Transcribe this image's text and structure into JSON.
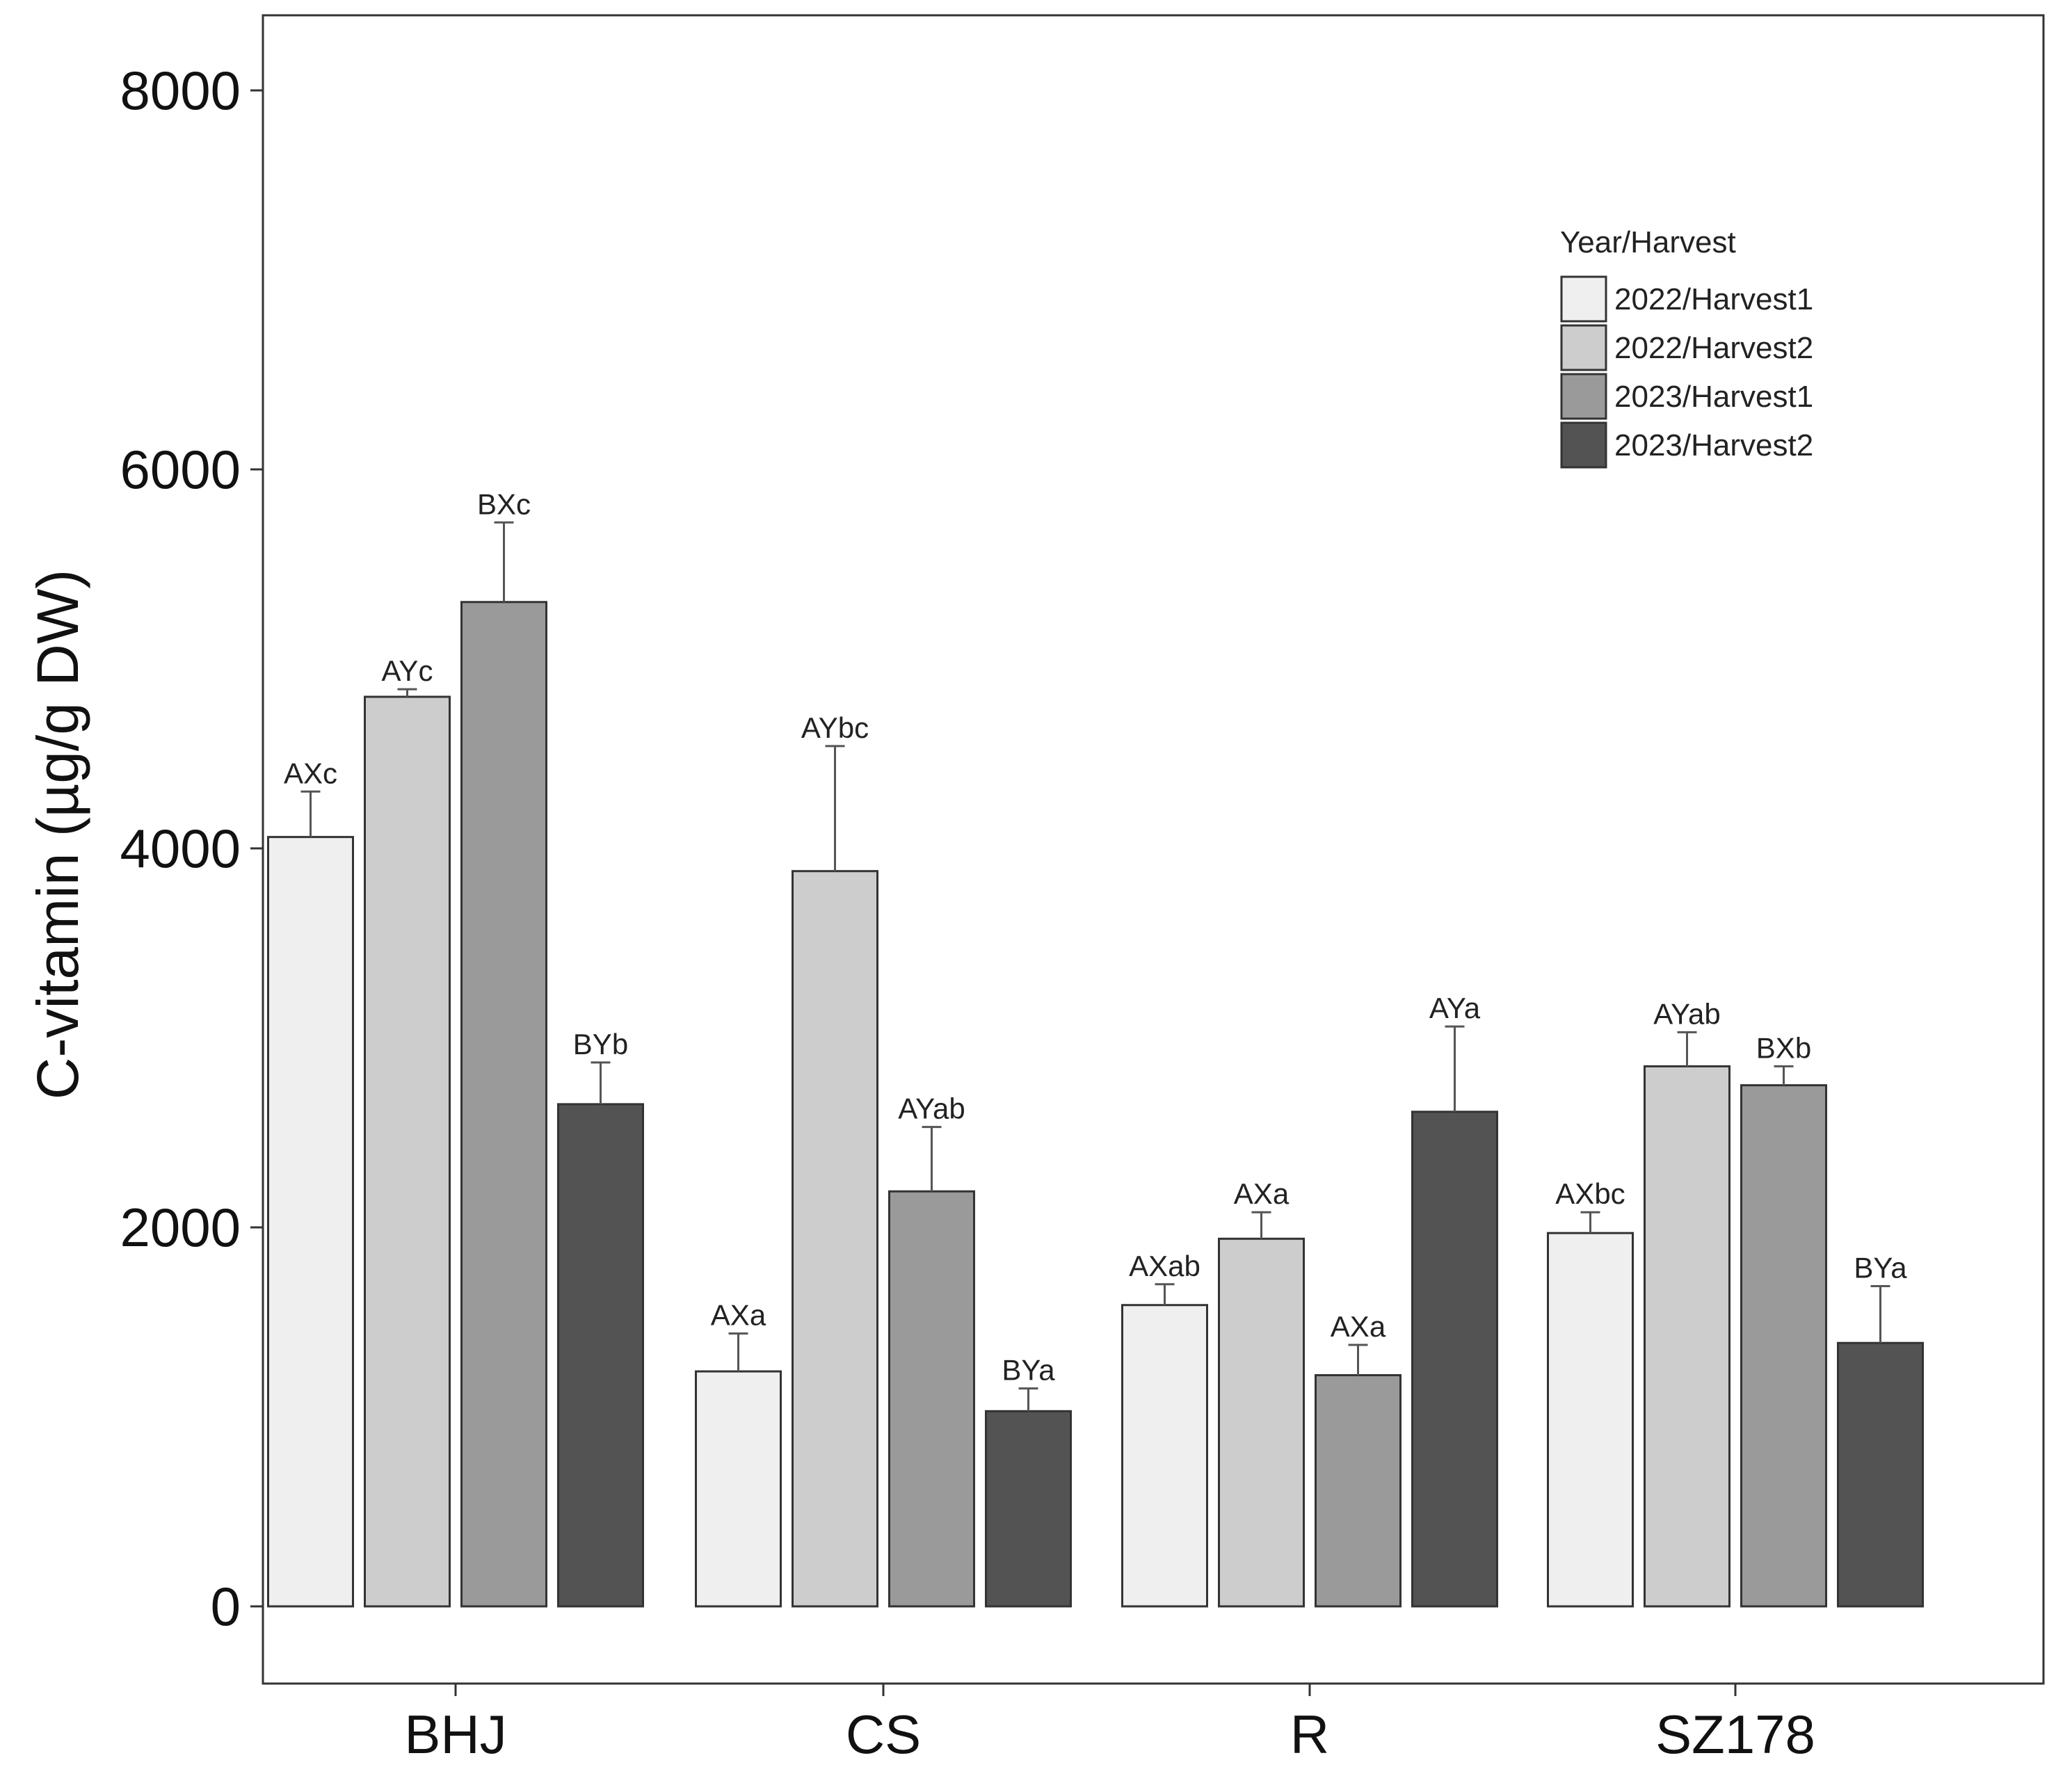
{
  "chart_data": {
    "type": "bar",
    "title": "",
    "xlabel": "",
    "ylabel": "C-vitamin (µg/g DW)",
    "ylim": [
      -400,
      8400
    ],
    "yticks": [
      0,
      2000,
      4000,
      6000,
      8000
    ],
    "ytick_labels": [
      "0",
      "2000",
      "4000",
      "6000",
      "8000"
    ],
    "grid": false,
    "legend_position": "top-right",
    "legend_title": "Year/Harvest",
    "categories": [
      "BHJ",
      "CS",
      "R",
      "SZ178"
    ],
    "series": [
      {
        "name": "2022/Harvest1",
        "color": "#efefef",
        "values": [
          4060,
          1240,
          1590,
          1970
        ],
        "errors": [
          240,
          200,
          110,
          110
        ],
        "labels": [
          "AXc",
          "AXa",
          "AXab",
          "AXbc"
        ]
      },
      {
        "name": "2022/Harvest2",
        "color": "#cdcdcd",
        "values": [
          4800,
          3880,
          1940,
          2850
        ],
        "errors": [
          40,
          660,
          140,
          180
        ],
        "labels": [
          "AYc",
          "AYbc",
          "AXa",
          "AYab"
        ]
      },
      {
        "name": "2023/Harvest1",
        "color": "#9a9a9a",
        "values": [
          5300,
          2190,
          1220,
          2750
        ],
        "errors": [
          420,
          340,
          160,
          100
        ],
        "labels": [
          "BXc",
          "AYab",
          "AXa",
          "BXb"
        ]
      },
      {
        "name": "2023/Harvest2",
        "color": "#535353",
        "values": [
          2650,
          1030,
          2610,
          1390
        ],
        "errors": [
          220,
          120,
          450,
          300
        ],
        "labels": [
          "BYb",
          "BYa",
          "AYa",
          "BYa"
        ]
      }
    ]
  }
}
